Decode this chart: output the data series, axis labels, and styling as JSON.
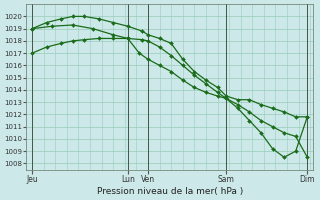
{
  "background_color": "#cce8e8",
  "grid_color": "#99ccbb",
  "line_color": "#1a6b1a",
  "marker_color": "#1a6b1a",
  "xlabel": "Pression niveau de la mer( hPa )",
  "ylim": [
    1007.5,
    1021.0
  ],
  "yticks": [
    1008,
    1009,
    1010,
    1011,
    1012,
    1013,
    1014,
    1015,
    1016,
    1017,
    1018,
    1019,
    1020
  ],
  "xtick_labels": [
    "Jeu",
    "Lun",
    "Ven",
    "Sam",
    "Dim"
  ],
  "xtick_positions": [
    0,
    33,
    40,
    67,
    95
  ],
  "xlim": [
    -2,
    97
  ],
  "vlines": [
    0,
    33,
    40,
    67,
    95
  ],
  "series1_x": [
    0,
    5,
    10,
    14,
    18,
    23,
    28,
    33,
    38,
    40,
    44,
    48,
    52,
    56,
    60,
    64,
    67,
    71,
    75,
    79,
    83,
    87,
    91,
    95
  ],
  "series1_y": [
    1017.0,
    1017.5,
    1017.8,
    1018.0,
    1018.1,
    1018.2,
    1018.2,
    1018.2,
    1018.1,
    1018.0,
    1017.5,
    1016.8,
    1016.0,
    1015.2,
    1014.5,
    1013.8,
    1013.3,
    1012.8,
    1012.2,
    1011.5,
    1011.0,
    1010.5,
    1010.2,
    1008.5
  ],
  "series2_x": [
    0,
    5,
    10,
    14,
    18,
    23,
    28,
    33,
    38,
    40,
    44,
    48,
    52,
    56,
    60,
    64,
    67,
    71,
    75,
    79,
    83,
    87,
    91,
    95
  ],
  "series2_y": [
    1019.0,
    1019.5,
    1019.8,
    1020.0,
    1020.0,
    1019.8,
    1019.5,
    1019.2,
    1018.8,
    1018.5,
    1018.2,
    1017.8,
    1016.5,
    1015.5,
    1014.8,
    1014.2,
    1013.5,
    1013.2,
    1013.2,
    1012.8,
    1012.5,
    1012.2,
    1011.8,
    1011.8
  ],
  "series3_x": [
    0,
    7,
    14,
    21,
    28,
    33,
    37,
    40,
    44,
    48,
    52,
    56,
    60,
    64,
    67,
    71,
    75,
    79,
    83,
    87,
    91,
    95
  ],
  "series3_y": [
    1019.0,
    1019.2,
    1019.3,
    1019.0,
    1018.5,
    1018.2,
    1017.0,
    1016.5,
    1016.0,
    1015.5,
    1014.8,
    1014.2,
    1013.8,
    1013.5,
    1013.3,
    1012.5,
    1011.5,
    1010.5,
    1009.2,
    1008.5,
    1009.0,
    1011.8
  ]
}
